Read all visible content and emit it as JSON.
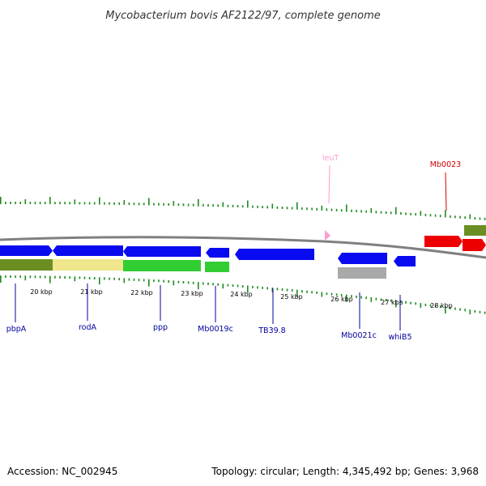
{
  "title": "Mycobacterium bovis AF2122/97, complete genome",
  "footer": {
    "accession": "Accession: NC_002945",
    "summary": "Topology: circular; Length: 4,345,492 bp; Genes: 3,968"
  },
  "colors": {
    "cds": "#0a0af0",
    "cog_olive": "#6b8e23",
    "cog_khaki": "#f0e68c",
    "cog_green": "#32cd32",
    "cog_gray": "#a9a9a9",
    "trna": "#ff9cd1",
    "other": "#ee0000",
    "tick": "#1f8a1f",
    "backbone": "#808080",
    "label_blue": "#00009c",
    "label_red": "#d40000",
    "label_pink": "#ff9cd1"
  },
  "kbp_labels": [
    "20 kbp",
    "21 kbp",
    "22 kbp",
    "23 kbp",
    "24 kbp",
    "25 kbp",
    "26 kbp",
    "27 kbp",
    "28 kbp"
  ],
  "gene_labels": [
    {
      "text": "pbpA",
      "color": "label_blue"
    },
    {
      "text": "rodA",
      "color": "label_blue"
    },
    {
      "text": "ppp",
      "color": "label_blue"
    },
    {
      "text": "Mb0019c",
      "color": "label_blue"
    },
    {
      "text": "TB39.8",
      "color": "label_blue"
    },
    {
      "text": "Mb0021c",
      "color": "label_blue"
    },
    {
      "text": "whiB5",
      "color": "label_blue"
    },
    {
      "text": "leuT",
      "color": "label_pink"
    },
    {
      "text": "Mb0023",
      "color": "label_red"
    }
  ]
}
